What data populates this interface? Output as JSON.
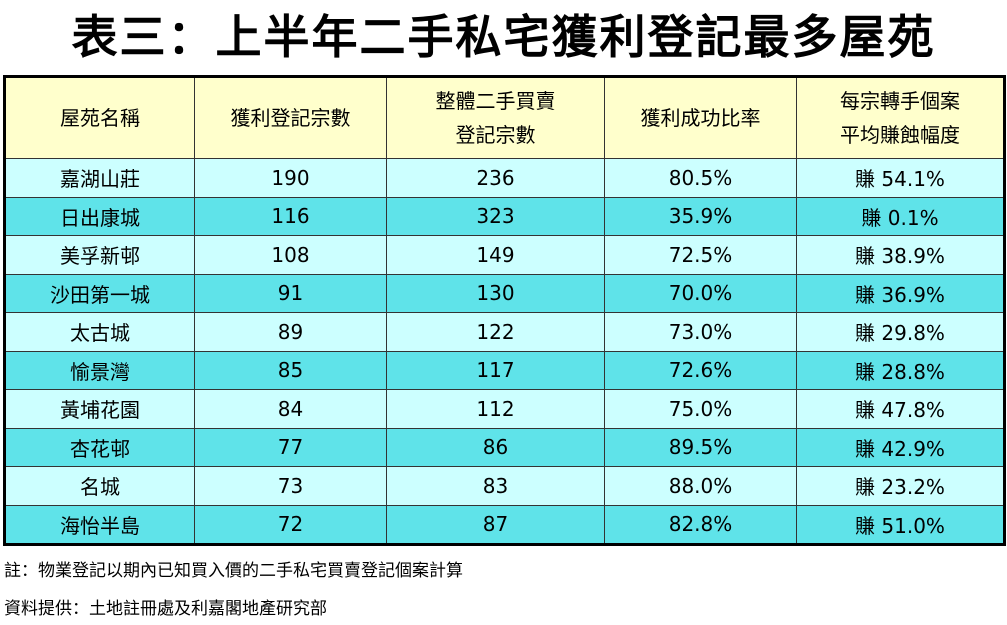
{
  "title": "表三：上半年二手私宅獲利登記最多屋苑",
  "table": {
    "headers": [
      [
        "屋苑名稱"
      ],
      [
        "獲利登記宗數"
      ],
      [
        "整體二手買賣",
        "登記宗數"
      ],
      [
        "獲利成功比率"
      ],
      [
        "每宗轉手個案",
        "平均賺蝕幅度"
      ]
    ],
    "rows": [
      [
        "嘉湖山莊",
        "190",
        "236",
        "80.5%",
        "賺 54.1%"
      ],
      [
        "日出康城",
        "116",
        "323",
        "35.9%",
        "賺 0.1%"
      ],
      [
        "美孚新邨",
        "108",
        "149",
        "72.5%",
        "賺 38.9%"
      ],
      [
        "沙田第一城",
        "91",
        "130",
        "70.0%",
        "賺 36.9%"
      ],
      [
        "太古城",
        "89",
        "122",
        "73.0%",
        "賺 29.8%"
      ],
      [
        "愉景灣",
        "85",
        "117",
        "72.6%",
        "賺 28.8%"
      ],
      [
        "黃埔花園",
        "84",
        "112",
        "75.0%",
        "賺 47.8%"
      ],
      [
        "杏花邨",
        "77",
        "86",
        "89.5%",
        "賺 42.9%"
      ],
      [
        "名城",
        "73",
        "83",
        "88.0%",
        "賺 23.2%"
      ],
      [
        "海怡半島",
        "72",
        "87",
        "82.8%",
        "賺 51.0%"
      ]
    ]
  },
  "notes": [
    "註：物業登記以期內已知買入價的二手私宅買賣登記個案計算",
    "資料提供：土地註冊處及利嘉閣地產研究部"
  ]
}
